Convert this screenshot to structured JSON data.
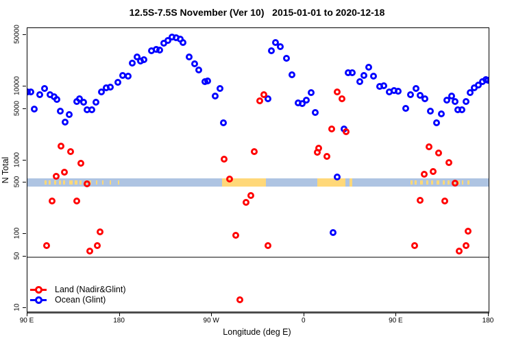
{
  "title": "12.5S-7.5S November (Ver 10)   2015-01-01 to 2020-12-18",
  "axes": {
    "x_label": "Longitude (deg E)",
    "y_label": "N Total",
    "x_ticks": [
      {
        "deg": 90,
        "label": "90 E"
      },
      {
        "deg": 180,
        "label": "180"
      },
      {
        "deg": 270,
        "label": "90 W"
      },
      {
        "deg": 360,
        "label": "0"
      },
      {
        "deg": 450,
        "label": "90 E"
      },
      {
        "deg": 540,
        "label": "180"
      }
    ],
    "y_ticks": [
      {
        "value": 50000,
        "label": "50000"
      },
      {
        "value": 10000,
        "label": "10000"
      },
      {
        "value": 5000,
        "label": "5000"
      },
      {
        "value": 1000,
        "label": "1000"
      },
      {
        "value": 500,
        "label": "500"
      },
      {
        "value": 100,
        "label": "100"
      },
      {
        "value": 50,
        "label": "50"
      },
      {
        "value": 10,
        "label": "10"
      }
    ]
  },
  "legend": {
    "items": [
      {
        "label": "Land (Nadir&Glint)",
        "color": "#ff0000"
      },
      {
        "label": "Ocean (Glint)",
        "color": "#0000ff"
      }
    ]
  },
  "chart_data": {
    "type": "scatter",
    "title": "12.5S-7.5S November (Ver 10)   2015-01-01 to 2020-12-18",
    "xlabel": "Longitude (deg E)",
    "ylabel": "N Total",
    "x_axis_note": "longitude in deg E increasing eastward, axis spans 90E to 180 wrapping through 90W and 0 (90 to 540)",
    "x_range": [
      90,
      540
    ],
    "y_scale": "log",
    "y_range": [
      9,
      55000
    ],
    "grid": false,
    "reference_line_y": 50,
    "legend_position": "bottom-left",
    "series": [
      {
        "name": "Ocean (Glint)",
        "color": "#0000ff",
        "points": [
          [
            90,
            8400
          ],
          [
            93,
            8400
          ],
          [
            97,
            5000
          ],
          [
            102,
            7700
          ],
          [
            107,
            9500
          ],
          [
            112,
            7700
          ],
          [
            116,
            7300
          ],
          [
            119,
            6700
          ],
          [
            122,
            4600
          ],
          [
            127,
            3300
          ],
          [
            131,
            4200
          ],
          [
            138,
            6300
          ],
          [
            141,
            6900
          ],
          [
            145,
            6200
          ],
          [
            148,
            4900
          ],
          [
            153,
            4900
          ],
          [
            157,
            6200
          ],
          [
            162,
            8400
          ],
          [
            167,
            9700
          ],
          [
            171,
            9900
          ],
          [
            178,
            11500
          ],
          [
            183,
            14100
          ],
          [
            188,
            13800
          ],
          [
            192,
            20700
          ],
          [
            197,
            25200
          ],
          [
            200,
            22200
          ],
          [
            204,
            23200
          ],
          [
            211,
            30800
          ],
          [
            216,
            32100
          ],
          [
            219,
            31400
          ],
          [
            223,
            38300
          ],
          [
            227,
            41900
          ],
          [
            231,
            46900
          ],
          [
            235,
            45900
          ],
          [
            239,
            44000
          ],
          [
            242,
            39200
          ],
          [
            248,
            25200
          ],
          [
            253,
            20200
          ],
          [
            257,
            16700
          ],
          [
            263,
            11700
          ],
          [
            266,
            11900
          ],
          [
            273,
            7500
          ],
          [
            278,
            9500
          ],
          [
            281,
            3240
          ],
          [
            325,
            6840
          ],
          [
            328,
            30800
          ],
          [
            332,
            39200
          ],
          [
            337,
            34600
          ],
          [
            343,
            24200
          ],
          [
            348,
            14400
          ],
          [
            354,
            6000
          ],
          [
            358,
            5890
          ],
          [
            362,
            6540
          ],
          [
            367,
            8350
          ],
          [
            371,
            4460
          ],
          [
            388,
            105
          ],
          [
            392,
            595
          ],
          [
            399,
            2670
          ],
          [
            403,
            15400
          ],
          [
            407,
            15400
          ],
          [
            414,
            11700
          ],
          [
            418,
            14100
          ],
          [
            423,
            18100
          ],
          [
            428,
            13800
          ],
          [
            434,
            10100
          ],
          [
            438,
            10300
          ],
          [
            443,
            8520
          ],
          [
            448,
            8870
          ],
          [
            452,
            8690
          ],
          [
            459,
            5070
          ],
          [
            464,
            7830
          ],
          [
            469,
            9470
          ],
          [
            473,
            7660
          ],
          [
            478,
            6840
          ],
          [
            483,
            4640
          ],
          [
            489,
            3240
          ],
          [
            494,
            4250
          ],
          [
            499,
            6540
          ],
          [
            504,
            7400
          ],
          [
            507,
            6300
          ],
          [
            510,
            4800
          ],
          [
            514,
            4900
          ],
          [
            518,
            6300
          ],
          [
            522,
            8200
          ],
          [
            526,
            9700
          ],
          [
            530,
            10400
          ],
          [
            534,
            11600
          ],
          [
            537,
            12400
          ],
          [
            539,
            12100
          ]
        ]
      },
      {
        "name": "Land (Nadir&Glint)",
        "color": "#ff0000",
        "points": [
          [
            109,
            70
          ],
          [
            114,
            282
          ],
          [
            118,
            610
          ],
          [
            123,
            1560
          ],
          [
            126,
            692
          ],
          [
            132,
            1320
          ],
          [
            138,
            282
          ],
          [
            142,
            914
          ],
          [
            148,
            481
          ],
          [
            151,
            59
          ],
          [
            158,
            70
          ],
          [
            161,
            108
          ],
          [
            282,
            1040
          ],
          [
            287,
            558
          ],
          [
            293,
            97
          ],
          [
            297,
            13
          ],
          [
            303,
            270
          ],
          [
            308,
            334
          ],
          [
            311,
            1320
          ],
          [
            317,
            6400
          ],
          [
            321,
            7800
          ],
          [
            325,
            70
          ],
          [
            373,
            1290
          ],
          [
            374,
            1470
          ],
          [
            382,
            1130
          ],
          [
            387,
            2670
          ],
          [
            392,
            8470
          ],
          [
            397,
            6840
          ],
          [
            401,
            2450
          ],
          [
            468,
            70
          ],
          [
            473,
            288
          ],
          [
            477,
            650
          ],
          [
            482,
            1530
          ],
          [
            486,
            707
          ],
          [
            491,
            1260
          ],
          [
            497,
            281
          ],
          [
            501,
            933
          ],
          [
            507,
            492
          ],
          [
            511,
            59
          ],
          [
            518,
            70
          ],
          [
            520,
            110
          ]
        ]
      }
    ],
    "map_band": {
      "description": "land/ocean strip map drawn across the plot at N Total = 500",
      "y_center_value": 500,
      "ocean_color": "#aec4e2",
      "land_color": "#ffd879",
      "major_land_segments_deg": [
        [
          280,
          323
        ],
        [
          373,
          400
        ],
        [
          404,
          407
        ]
      ],
      "island_speck_segments_deg": [
        [
          107,
          109
        ],
        [
          111,
          113
        ],
        [
          116,
          118
        ],
        [
          121,
          123
        ],
        [
          125,
          127
        ],
        [
          131,
          134
        ],
        [
          136,
          139
        ],
        [
          141,
          143
        ],
        [
          146,
          148
        ],
        [
          150,
          152
        ],
        [
          157,
          158
        ],
        [
          163,
          164
        ],
        [
          170,
          171
        ],
        [
          178,
          179
        ],
        [
          464,
          466
        ],
        [
          468,
          470
        ],
        [
          473,
          476
        ],
        [
          479,
          481
        ],
        [
          484,
          486
        ],
        [
          489,
          492
        ],
        [
          495,
          497
        ],
        [
          500,
          502
        ],
        [
          505,
          507
        ],
        [
          510,
          512
        ],
        [
          514,
          515
        ],
        [
          519,
          521
        ]
      ]
    }
  }
}
